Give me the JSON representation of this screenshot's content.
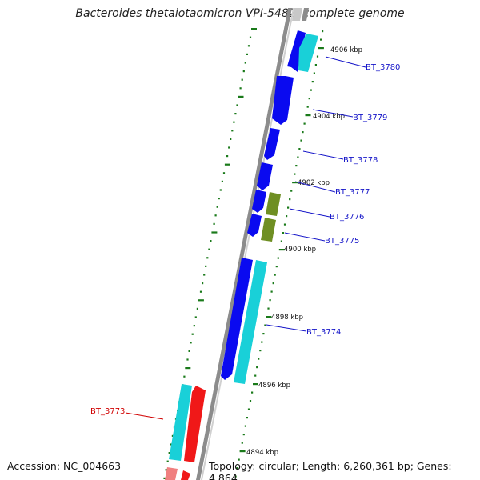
{
  "title": "Bacteroides thetaiotaomicron VPI-5482, complete genome",
  "footer": {
    "accession": "Accession: NC_004663",
    "topology": "Topology: circular; Length: 6,260,361 bp; Genes: 4,864"
  },
  "colors": {
    "forward_cds": "#0a0af0",
    "reverse_cds": "#19d0d8",
    "rna_gene": "#6f8f23",
    "highlight_gene": "#f01818",
    "highlight_partner": "#f08080",
    "backbone": "#8c8c8c",
    "ticks": "#1a7a1a",
    "label_line": "#1414c8",
    "label_highlight": "#d00000"
  },
  "ticks": [
    {
      "kbp": 4906,
      "label": "4906 kbp"
    },
    {
      "kbp": 4904,
      "label": "4904 kbp"
    },
    {
      "kbp": 4902,
      "label": "4902 kbp"
    },
    {
      "kbp": 4900,
      "label": "4900 kbp"
    },
    {
      "kbp": 4898,
      "label": "4898 kbp"
    },
    {
      "kbp": 4896,
      "label": "4896 kbp"
    },
    {
      "kbp": 4894,
      "label": "4894 kbp"
    }
  ],
  "gene_labels": [
    {
      "name": "BT_3780",
      "highlight": false
    },
    {
      "name": "BT_3779",
      "highlight": false
    },
    {
      "name": "BT_3778",
      "highlight": false
    },
    {
      "name": "BT_3777",
      "highlight": false
    },
    {
      "name": "BT_3776",
      "highlight": false
    },
    {
      "name": "BT_3775",
      "highlight": false
    },
    {
      "name": "BT_3774",
      "highlight": false
    },
    {
      "name": "BT_3773",
      "highlight": true
    }
  ]
}
